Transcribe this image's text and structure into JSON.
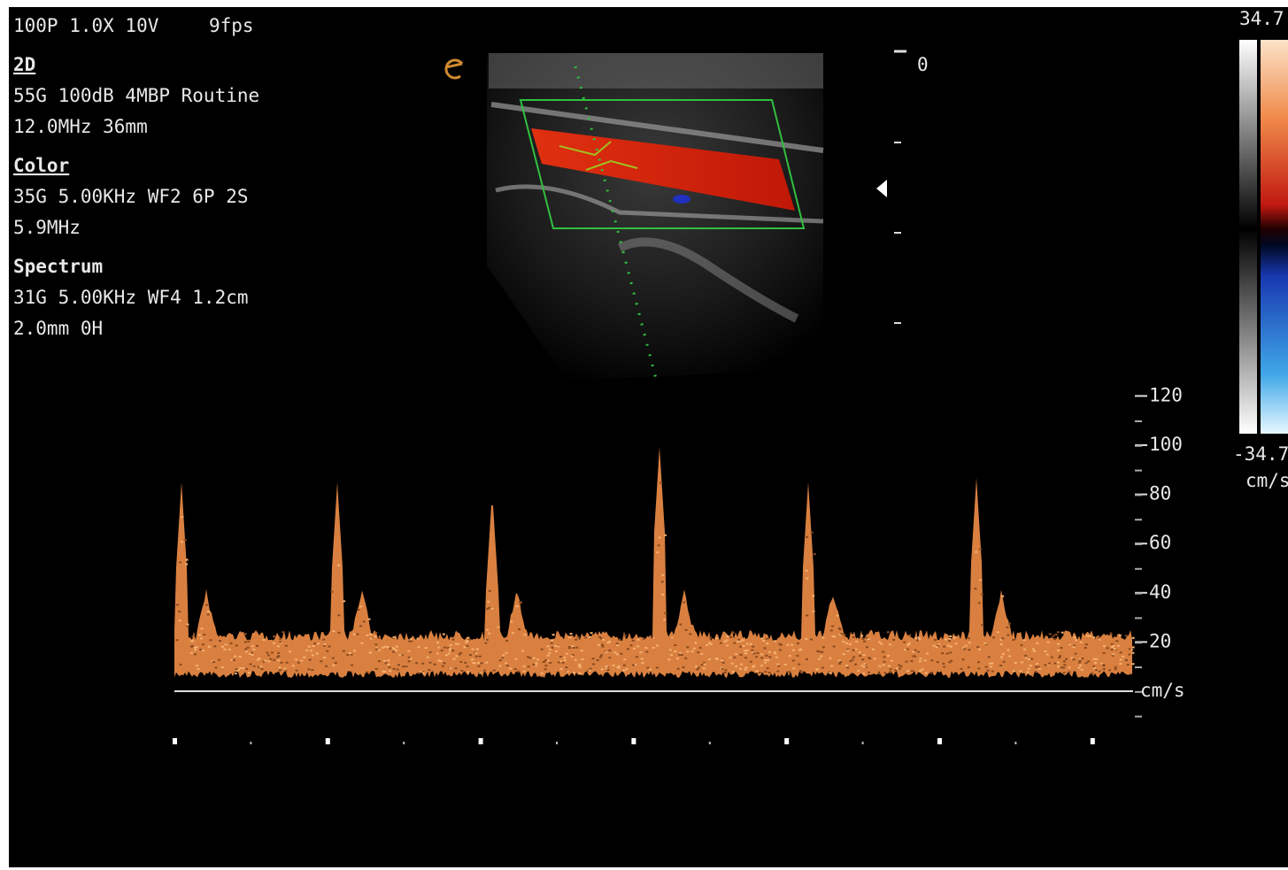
{
  "header": {
    "mode": "100P 1.0X 10V",
    "frame_rate": "9fps"
  },
  "sections": [
    {
      "title": "2D",
      "underline": true,
      "lines": [
        "55G 100dB 4MBP Routine",
        "12.0MHz 36mm"
      ]
    },
    {
      "title": "Color",
      "underline": true,
      "lines": [
        "35G 5.00KHz WF2 6P 2S",
        "5.9MHz"
      ]
    },
    {
      "title": "Spectrum",
      "underline": false,
      "lines": [
        "31G 5.00KHz WF4 1.2cm",
        "2.0mm 0H"
      ]
    }
  ],
  "depth_scale": {
    "label": "0"
  },
  "color_bar": {
    "max_label": "34.7",
    "min_label": "-34.7",
    "unit": "cm/s"
  },
  "spectrum": {
    "velocity_ticks": [
      120,
      100,
      80,
      60,
      40,
      20
    ],
    "unit": "cm/s"
  }
}
